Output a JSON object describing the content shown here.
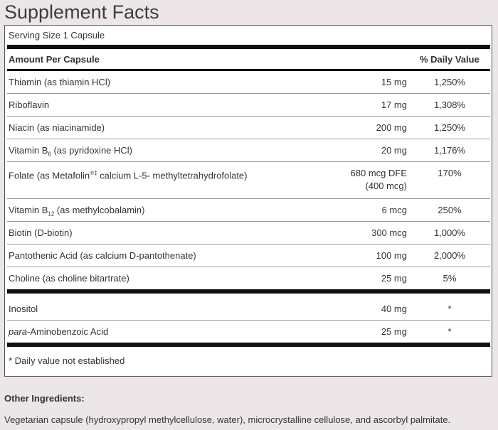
{
  "title": "Supplement Facts",
  "serving_size": "Serving Size 1 Capsule",
  "header": {
    "amount_label": "Amount Per Capsule",
    "dv_label": "% Daily Value"
  },
  "rows": [
    {
      "name": "Thiamin (as thiamin HCl)",
      "amount": "15 mg",
      "dv": "1,250%"
    },
    {
      "name": "Riboflavin",
      "amount": "17 mg",
      "dv": "1,308%"
    },
    {
      "name": "Niacin (as niacinamide)",
      "amount": "200 mg",
      "dv": "1,250%"
    },
    {
      "name_pre": "Vitamin B",
      "name_sub": "6",
      "name_post": " (as pyridoxine HCl)",
      "amount": "20 mg",
      "dv": "1,176%"
    },
    {
      "name_pre": "Folate (as Metafolin",
      "name_sup": "®‡",
      "name_post": " calcium L-5- methyltetrahydrofolate)",
      "amount": "680 mcg DFE",
      "amount2": "(400 mcg)",
      "dv": "170%"
    },
    {
      "name_pre": "Vitamin B",
      "name_sub": "12",
      "name_post": " (as methylcobalamin)",
      "amount": "6 mcg",
      "dv": "250%"
    },
    {
      "name": "Biotin (D-biotin)",
      "amount": "300 mcg",
      "dv": "1,000%"
    },
    {
      "name": "Pantothenic Acid (as calcium D-pantothenate)",
      "amount": "100 mg",
      "dv": "2,000%"
    },
    {
      "name": "Choline (as choline bitartrate)",
      "amount": "25 mg",
      "dv": "5%"
    }
  ],
  "rows2": [
    {
      "name": "Inositol",
      "amount": "40 mg",
      "dv": "*"
    },
    {
      "name_em": "para",
      "name_post": "-Aminobenzoic Acid",
      "amount": "25 mg",
      "dv": "*"
    }
  ],
  "footnote": "* Daily value not established",
  "other_ingredients": {
    "heading": "Other Ingredients:",
    "text": "Vegetarian capsule (hydroxypropyl methylcellulose, water), microcrystalline cellulose, and ascorbyl palmitate."
  }
}
